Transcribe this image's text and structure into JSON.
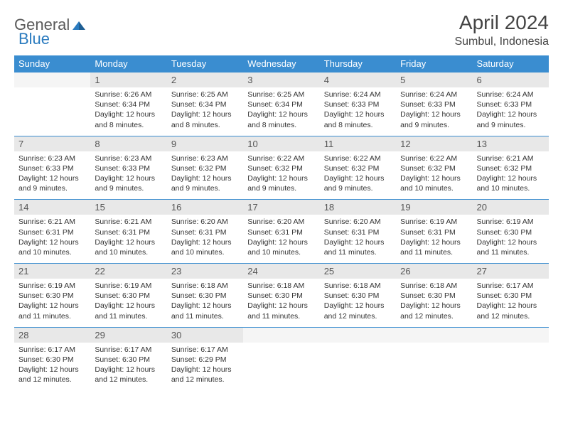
{
  "logo": {
    "text1": "General",
    "text2": "Blue"
  },
  "title": {
    "month": "April 2024",
    "location": "Sumbul, Indonesia"
  },
  "colors": {
    "header_bg": "#3a8dd0",
    "header_text": "#ffffff",
    "daynum_bg": "#e8e8e8",
    "daynum_text": "#555555",
    "border": "#3a8dd0",
    "body_text": "#333333",
    "logo_gray": "#5a5a5a",
    "logo_blue": "#2b7bbf"
  },
  "days_of_week": [
    "Sunday",
    "Monday",
    "Tuesday",
    "Wednesday",
    "Thursday",
    "Friday",
    "Saturday"
  ],
  "weeks": [
    [
      null,
      {
        "num": "1",
        "sunrise": "6:26 AM",
        "sunset": "6:34 PM",
        "daylight": "12 hours and 8 minutes."
      },
      {
        "num": "2",
        "sunrise": "6:25 AM",
        "sunset": "6:34 PM",
        "daylight": "12 hours and 8 minutes."
      },
      {
        "num": "3",
        "sunrise": "6:25 AM",
        "sunset": "6:34 PM",
        "daylight": "12 hours and 8 minutes."
      },
      {
        "num": "4",
        "sunrise": "6:24 AM",
        "sunset": "6:33 PM",
        "daylight": "12 hours and 8 minutes."
      },
      {
        "num": "5",
        "sunrise": "6:24 AM",
        "sunset": "6:33 PM",
        "daylight": "12 hours and 9 minutes."
      },
      {
        "num": "6",
        "sunrise": "6:24 AM",
        "sunset": "6:33 PM",
        "daylight": "12 hours and 9 minutes."
      }
    ],
    [
      {
        "num": "7",
        "sunrise": "6:23 AM",
        "sunset": "6:33 PM",
        "daylight": "12 hours and 9 minutes."
      },
      {
        "num": "8",
        "sunrise": "6:23 AM",
        "sunset": "6:33 PM",
        "daylight": "12 hours and 9 minutes."
      },
      {
        "num": "9",
        "sunrise": "6:23 AM",
        "sunset": "6:32 PM",
        "daylight": "12 hours and 9 minutes."
      },
      {
        "num": "10",
        "sunrise": "6:22 AM",
        "sunset": "6:32 PM",
        "daylight": "12 hours and 9 minutes."
      },
      {
        "num": "11",
        "sunrise": "6:22 AM",
        "sunset": "6:32 PM",
        "daylight": "12 hours and 9 minutes."
      },
      {
        "num": "12",
        "sunrise": "6:22 AM",
        "sunset": "6:32 PM",
        "daylight": "12 hours and 10 minutes."
      },
      {
        "num": "13",
        "sunrise": "6:21 AM",
        "sunset": "6:32 PM",
        "daylight": "12 hours and 10 minutes."
      }
    ],
    [
      {
        "num": "14",
        "sunrise": "6:21 AM",
        "sunset": "6:31 PM",
        "daylight": "12 hours and 10 minutes."
      },
      {
        "num": "15",
        "sunrise": "6:21 AM",
        "sunset": "6:31 PM",
        "daylight": "12 hours and 10 minutes."
      },
      {
        "num": "16",
        "sunrise": "6:20 AM",
        "sunset": "6:31 PM",
        "daylight": "12 hours and 10 minutes."
      },
      {
        "num": "17",
        "sunrise": "6:20 AM",
        "sunset": "6:31 PM",
        "daylight": "12 hours and 10 minutes."
      },
      {
        "num": "18",
        "sunrise": "6:20 AM",
        "sunset": "6:31 PM",
        "daylight": "12 hours and 11 minutes."
      },
      {
        "num": "19",
        "sunrise": "6:19 AM",
        "sunset": "6:31 PM",
        "daylight": "12 hours and 11 minutes."
      },
      {
        "num": "20",
        "sunrise": "6:19 AM",
        "sunset": "6:30 PM",
        "daylight": "12 hours and 11 minutes."
      }
    ],
    [
      {
        "num": "21",
        "sunrise": "6:19 AM",
        "sunset": "6:30 PM",
        "daylight": "12 hours and 11 minutes."
      },
      {
        "num": "22",
        "sunrise": "6:19 AM",
        "sunset": "6:30 PM",
        "daylight": "12 hours and 11 minutes."
      },
      {
        "num": "23",
        "sunrise": "6:18 AM",
        "sunset": "6:30 PM",
        "daylight": "12 hours and 11 minutes."
      },
      {
        "num": "24",
        "sunrise": "6:18 AM",
        "sunset": "6:30 PM",
        "daylight": "12 hours and 11 minutes."
      },
      {
        "num": "25",
        "sunrise": "6:18 AM",
        "sunset": "6:30 PM",
        "daylight": "12 hours and 12 minutes."
      },
      {
        "num": "26",
        "sunrise": "6:18 AM",
        "sunset": "6:30 PM",
        "daylight": "12 hours and 12 minutes."
      },
      {
        "num": "27",
        "sunrise": "6:17 AM",
        "sunset": "6:30 PM",
        "daylight": "12 hours and 12 minutes."
      }
    ],
    [
      {
        "num": "28",
        "sunrise": "6:17 AM",
        "sunset": "6:30 PM",
        "daylight": "12 hours and 12 minutes."
      },
      {
        "num": "29",
        "sunrise": "6:17 AM",
        "sunset": "6:30 PM",
        "daylight": "12 hours and 12 minutes."
      },
      {
        "num": "30",
        "sunrise": "6:17 AM",
        "sunset": "6:29 PM",
        "daylight": "12 hours and 12 minutes."
      },
      null,
      null,
      null,
      null
    ]
  ],
  "labels": {
    "sunrise": "Sunrise:",
    "sunset": "Sunset:",
    "daylight": "Daylight:"
  }
}
